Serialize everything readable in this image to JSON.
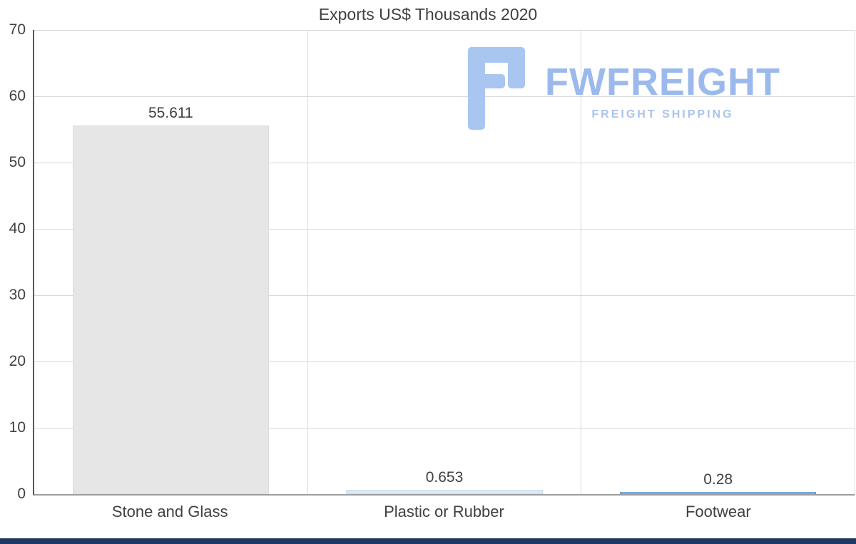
{
  "chart_data": {
    "type": "bar",
    "title": "Exports US$ Thousands 2020",
    "categories": [
      "Stone and Glass",
      "Plastic or Rubber",
      "Footwear"
    ],
    "values": [
      55.611,
      0.653,
      0.28
    ],
    "value_labels": [
      "55.611",
      "0.653",
      "0.28"
    ],
    "ylim": [
      0,
      70
    ],
    "yticks": [
      0,
      10,
      20,
      30,
      40,
      50,
      60,
      70
    ],
    "grid": "horizontal",
    "legend": "none",
    "bar_colors": [
      "#e6e6e6",
      "#dbe9f8",
      "#bdd7ee"
    ],
    "bar_border_colors": [
      "#dcdcdc",
      "#cadef3",
      "#5b9bd5"
    ]
  },
  "watermark": {
    "brand": "FWFREIGHT",
    "tagline": "FREIGHT SHIPPING",
    "icon_color": "#a9c6f1"
  },
  "page": {
    "footer_color": "#1f3864"
  }
}
